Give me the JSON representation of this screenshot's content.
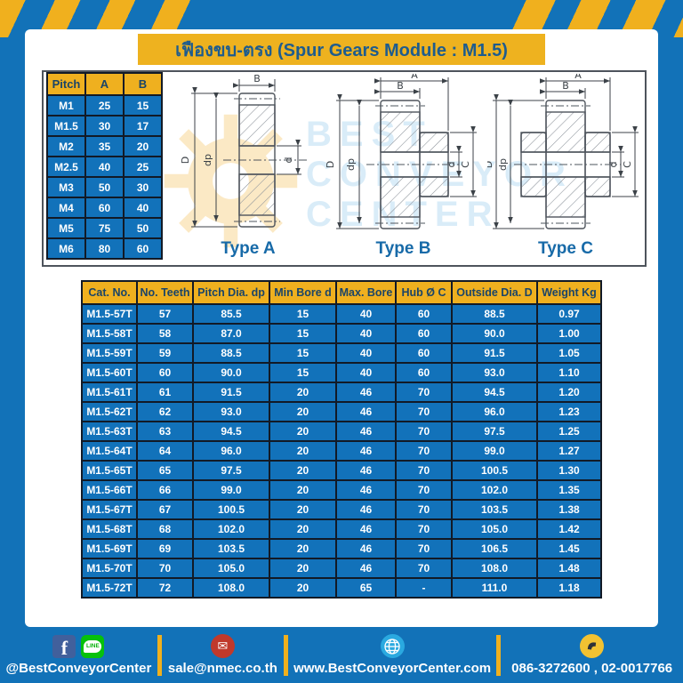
{
  "title": "เฟืองขบ-ตรง (Spur Gears Module : M1.5)",
  "pitch_table": {
    "headers": [
      "Pitch",
      "A",
      "B"
    ],
    "rows": [
      [
        "M1",
        "25",
        "15"
      ],
      [
        "M1.5",
        "30",
        "17"
      ],
      [
        "M2",
        "35",
        "20"
      ],
      [
        "M2.5",
        "40",
        "25"
      ],
      [
        "M3",
        "50",
        "30"
      ],
      [
        "M4",
        "60",
        "40"
      ],
      [
        "M5",
        "75",
        "50"
      ],
      [
        "M6",
        "80",
        "60"
      ]
    ]
  },
  "diagrams": {
    "type_a_label": "Type A",
    "type_b_label": "Type B",
    "type_c_label": "Type C",
    "dim_labels": {
      "A": "A",
      "B": "B",
      "D": "D",
      "dp": "dp",
      "d": "d",
      "C": "C"
    },
    "watermark": {
      "line1": "BEST",
      "line2": "CONVEYOR",
      "line3": "CENTER"
    }
  },
  "spec_table": {
    "headers": [
      "Cat. No.",
      "No. Teeth",
      "Pitch Dia. dp",
      "Min Bore d",
      "Max. Bore",
      "Hub Ø C",
      "Outside Dia. D",
      "Weight Kg"
    ],
    "rows": [
      [
        "M1.5-57T",
        "57",
        "85.5",
        "15",
        "40",
        "60",
        "88.5",
        "0.97"
      ],
      [
        "M1.5-58T",
        "58",
        "87.0",
        "15",
        "40",
        "60",
        "90.0",
        "1.00"
      ],
      [
        "M1.5-59T",
        "59",
        "88.5",
        "15",
        "40",
        "60",
        "91.5",
        "1.05"
      ],
      [
        "M1.5-60T",
        "60",
        "90.0",
        "15",
        "40",
        "60",
        "93.0",
        "1.10"
      ],
      [
        "M1.5-61T",
        "61",
        "91.5",
        "20",
        "46",
        "70",
        "94.5",
        "1.20"
      ],
      [
        "M1.5-62T",
        "62",
        "93.0",
        "20",
        "46",
        "70",
        "96.0",
        "1.23"
      ],
      [
        "M1.5-63T",
        "63",
        "94.5",
        "20",
        "46",
        "70",
        "97.5",
        "1.25"
      ],
      [
        "M1.5-64T",
        "64",
        "96.0",
        "20",
        "46",
        "70",
        "99.0",
        "1.27"
      ],
      [
        "M1.5-65T",
        "65",
        "97.5",
        "20",
        "46",
        "70",
        "100.5",
        "1.30"
      ],
      [
        "M1.5-66T",
        "66",
        "99.0",
        "20",
        "46",
        "70",
        "102.0",
        "1.35"
      ],
      [
        "M1.5-67T",
        "67",
        "100.5",
        "20",
        "46",
        "70",
        "103.5",
        "1.38"
      ],
      [
        "M1.5-68T",
        "68",
        "102.0",
        "20",
        "46",
        "70",
        "105.0",
        "1.42"
      ],
      [
        "M1.5-69T",
        "69",
        "103.5",
        "20",
        "46",
        "70",
        "106.5",
        "1.45"
      ],
      [
        "M1.5-70T",
        "70",
        "105.0",
        "20",
        "46",
        "70",
        "108.0",
        "1.48"
      ],
      [
        "M1.5-72T",
        "72",
        "108.0",
        "20",
        "65",
        "-",
        "111.0",
        "1.18"
      ]
    ]
  },
  "footer": {
    "social_handle": "@BestConveyorCenter",
    "line_label": "LINE",
    "email": "sale@nmec.co.th",
    "email_icon_glyph": "✉",
    "website": "www.BestConveyorCenter.com",
    "phones": "086-3272600 , 02-0017766"
  },
  "colors": {
    "frame_blue": "#1272b8",
    "tape_yellow": "#f0b01e",
    "header_yellow": "#efb01f",
    "cell_blue": "#1272ba",
    "title_text_blue": "#1e5c8e",
    "header_text_navy": "#1a4468",
    "border_dark": "#121a26",
    "facebook_blue": "#41609c",
    "line_green": "#06c10b",
    "mail_red": "#c0392b",
    "globe_blue": "#2aa9e0",
    "phone_yellow": "#f2c232"
  }
}
